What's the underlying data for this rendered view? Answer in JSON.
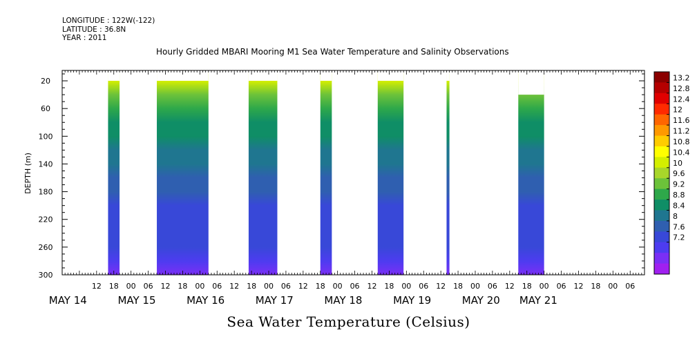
{
  "header": {
    "longitude": "LONGITUDE : 122W(-122)",
    "latitude": "LATITUDE : 36.8N",
    "year": "YEAR : 2011"
  },
  "chart_data": {
    "type": "heatmap",
    "title": "Hourly Gridded MBARI Mooring M1 Sea Water Temperature and Salinity Observations",
    "xlabel": "Sea Water Temperature (Celsius)",
    "ylabel": "DEPTH (m)",
    "ylim": [
      300,
      5
    ],
    "y_ticks": [
      20,
      60,
      100,
      140,
      180,
      220,
      260,
      300
    ],
    "x_range_hours": [
      0,
      203
    ],
    "x_hour_ticks": [
      {
        "hour": 12,
        "label": "12"
      },
      {
        "hour": 18,
        "label": "18"
      },
      {
        "hour": 24,
        "label": "00"
      },
      {
        "hour": 30,
        "label": "06"
      },
      {
        "hour": 36,
        "label": "12"
      },
      {
        "hour": 42,
        "label": "18"
      },
      {
        "hour": 48,
        "label": "00"
      },
      {
        "hour": 54,
        "label": "06"
      },
      {
        "hour": 60,
        "label": "12"
      },
      {
        "hour": 66,
        "label": "18"
      },
      {
        "hour": 72,
        "label": "00"
      },
      {
        "hour": 78,
        "label": "06"
      },
      {
        "hour": 84,
        "label": "12"
      },
      {
        "hour": 90,
        "label": "18"
      },
      {
        "hour": 96,
        "label": "00"
      },
      {
        "hour": 102,
        "label": "06"
      },
      {
        "hour": 108,
        "label": "12"
      },
      {
        "hour": 114,
        "label": "18"
      },
      {
        "hour": 120,
        "label": "00"
      },
      {
        "hour": 126,
        "label": "06"
      },
      {
        "hour": 132,
        "label": "12"
      },
      {
        "hour": 138,
        "label": "18"
      },
      {
        "hour": 144,
        "label": "00"
      },
      {
        "hour": 150,
        "label": "06"
      },
      {
        "hour": 156,
        "label": "12"
      },
      {
        "hour": 162,
        "label": "18"
      },
      {
        "hour": 168,
        "label": "00"
      },
      {
        "hour": 174,
        "label": "06"
      },
      {
        "hour": 180,
        "label": "12"
      },
      {
        "hour": 186,
        "label": "18"
      },
      {
        "hour": 192,
        "label": "00"
      },
      {
        "hour": 198,
        "label": "06"
      }
    ],
    "x_day_labels": [
      {
        "hour": 2,
        "label": "MAY 14"
      },
      {
        "hour": 26,
        "label": "MAY 15"
      },
      {
        "hour": 50,
        "label": "MAY 16"
      },
      {
        "hour": 74,
        "label": "MAY 17"
      },
      {
        "hour": 98,
        "label": "MAY 18"
      },
      {
        "hour": 122,
        "label": "MAY 19"
      },
      {
        "hour": 146,
        "label": "MAY 20"
      },
      {
        "hour": 166,
        "label": "MAY 21"
      }
    ],
    "colorbar": {
      "labels": [
        "13.2",
        "12.8",
        "12.4",
        "12",
        "11.6",
        "11.2",
        "10.8",
        "10.4",
        "10",
        "9.6",
        "9.2",
        "8.8",
        "8.4",
        "8",
        "7.6",
        "7.2"
      ],
      "colors": [
        "#8b0000",
        "#b50000",
        "#e00000",
        "#ff2a00",
        "#ff6600",
        "#ff9900",
        "#ffcc00",
        "#ffff00",
        "#d4ef00",
        "#a8d62a",
        "#6cc23a",
        "#2ea84a",
        "#0f8e66",
        "#1f7690",
        "#2f5fb0",
        "#3848d8",
        "#4d3cf0",
        "#7a2ff5",
        "#a020f0"
      ]
    },
    "data_blocks": [
      {
        "start": 16,
        "end": 20,
        "top_depth": 20
      },
      {
        "start": 33,
        "end": 51,
        "top_depth": 20
      },
      {
        "start": 65,
        "end": 75,
        "top_depth": 20
      },
      {
        "start": 90,
        "end": 94,
        "top_depth": 20
      },
      {
        "start": 110,
        "end": 119,
        "top_depth": 20
      },
      {
        "start": 134,
        "end": 135,
        "top_depth": 20
      },
      {
        "start": 159,
        "end": 168,
        "top_depth": 40
      }
    ],
    "profile": [
      {
        "depth": 20,
        "temp": 10.4
      },
      {
        "depth": 40,
        "temp": 10.0
      },
      {
        "depth": 60,
        "temp": 9.6
      },
      {
        "depth": 80,
        "temp": 9.3
      },
      {
        "depth": 100,
        "temp": 9.1
      },
      {
        "depth": 120,
        "temp": 8.9
      },
      {
        "depth": 140,
        "temp": 8.7
      },
      {
        "depth": 160,
        "temp": 8.5
      },
      {
        "depth": 180,
        "temp": 8.35
      },
      {
        "depth": 200,
        "temp": 8.2
      },
      {
        "depth": 220,
        "temp": 8.1
      },
      {
        "depth": 240,
        "temp": 8.0
      },
      {
        "depth": 260,
        "temp": 7.9
      },
      {
        "depth": 280,
        "temp": 7.7
      },
      {
        "depth": 300,
        "temp": 7.5
      }
    ]
  }
}
